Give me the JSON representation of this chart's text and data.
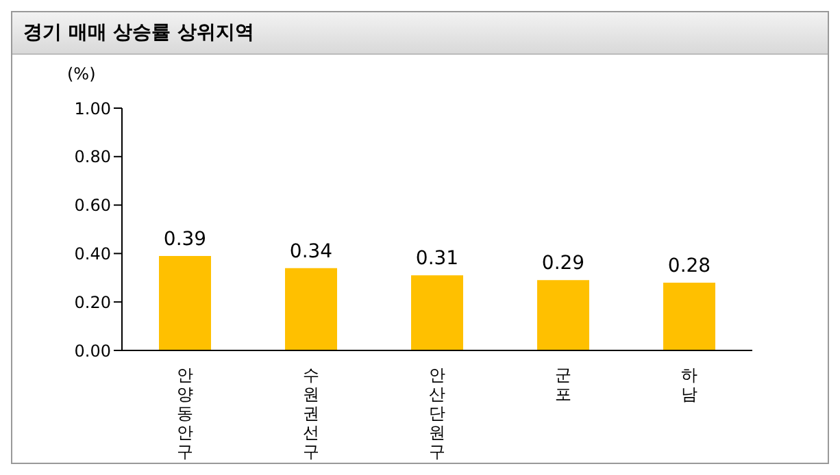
{
  "chart_data": {
    "type": "bar",
    "title": "경기 매매 상승률 상위지역",
    "ylabel": "(%)",
    "categories": [
      "안양동안구",
      "수원권선구",
      "안산단원구",
      "군포",
      "하남"
    ],
    "values": [
      0.39,
      0.34,
      0.31,
      0.29,
      0.28
    ],
    "color": "#ffc000",
    "ylim": [
      0,
      1
    ],
    "yticks": [
      {
        "value": 0,
        "label": "0.00"
      },
      {
        "value": 0.2,
        "label": "0.20"
      },
      {
        "value": 0.4,
        "label": "0.40"
      },
      {
        "value": 0.6,
        "label": "0.60"
      },
      {
        "value": 0.8,
        "label": "0.80"
      },
      {
        "value": 1,
        "label": "1.00"
      }
    ],
    "data_labels": true
  }
}
